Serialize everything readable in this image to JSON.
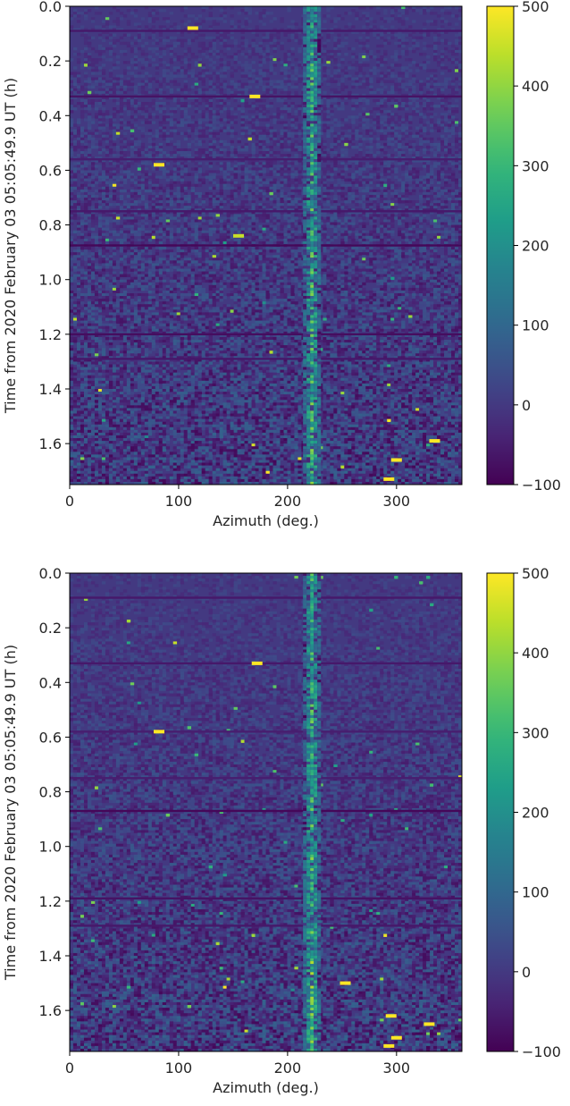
{
  "chart_data": [
    {
      "type": "heatmap",
      "title": "",
      "xlabel": "Azimuth (deg.)",
      "ylabel": "Time from 2020 February 03 05:05:49.9 UT (h)",
      "xlim": [
        0,
        360
      ],
      "ylim": [
        1.75,
        0.0
      ],
      "xticks": [
        0,
        100,
        200,
        300
      ],
      "yticks": [
        0.0,
        0.2,
        0.4,
        0.6,
        0.8,
        1.0,
        1.2,
        1.4,
        1.6
      ],
      "xtick_labels": [
        "0",
        "100",
        "200",
        "300"
      ],
      "ytick_labels": [
        "0.0",
        "0.2",
        "0.4",
        "0.6",
        "0.8",
        "1.0",
        "1.2",
        "1.4",
        "1.6"
      ],
      "colormap": "viridis",
      "colorbar": {
        "vmin": -100,
        "vmax": 500,
        "ticks": [
          -100,
          0,
          100,
          200,
          300,
          400,
          500
        ],
        "tick_labels": [
          "−100",
          "0",
          "100",
          "200",
          "300",
          "400",
          "500"
        ]
      },
      "background_value": 0,
      "ridge": [
        {
          "time": 0.0,
          "azimuth": 222,
          "value": 260
        },
        {
          "time": 0.9,
          "azimuth": 222,
          "value": 280
        },
        {
          "time": 1.75,
          "azimuth": 222,
          "value": 300
        }
      ],
      "horizontal_stripes": [
        {
          "time": 0.09,
          "value": -60
        },
        {
          "time": 0.33,
          "value": -70
        },
        {
          "time": 0.56,
          "value": -50
        },
        {
          "time": 0.75,
          "value": -60
        },
        {
          "time": 0.875,
          "value": -90
        },
        {
          "time": 1.2,
          "value": -80
        },
        {
          "time": 1.29,
          "value": -60
        }
      ],
      "hot_spots": [
        {
          "azimuth": 113,
          "time": 0.08,
          "value": 500
        },
        {
          "azimuth": 170,
          "time": 0.33,
          "value": 500
        },
        {
          "azimuth": 82,
          "time": 0.58,
          "value": 500
        },
        {
          "azimuth": 155,
          "time": 0.84,
          "value": 450
        },
        {
          "azimuth": 300,
          "time": 1.66,
          "value": 500
        },
        {
          "azimuth": 293,
          "time": 1.73,
          "value": 500
        },
        {
          "azimuth": 335,
          "time": 1.59,
          "value": 500
        }
      ]
    },
    {
      "type": "heatmap",
      "title": "",
      "xlabel": "Azimuth (deg.)",
      "ylabel": "Time from 2020 February 03 05:05:49.9 UT (h)",
      "xlim": [
        0,
        360
      ],
      "ylim": [
        1.75,
        0.0
      ],
      "xticks": [
        0,
        100,
        200,
        300
      ],
      "yticks": [
        0.0,
        0.2,
        0.4,
        0.6,
        0.8,
        1.0,
        1.2,
        1.4,
        1.6
      ],
      "xtick_labels": [
        "0",
        "100",
        "200",
        "300"
      ],
      "ytick_labels": [
        "0.0",
        "0.2",
        "0.4",
        "0.6",
        "0.8",
        "1.0",
        "1.2",
        "1.4",
        "1.6"
      ],
      "colormap": "viridis",
      "colorbar": {
        "vmin": -100,
        "vmax": 500,
        "ticks": [
          -100,
          0,
          100,
          200,
          300,
          400,
          500
        ],
        "tick_labels": [
          "−100",
          "0",
          "100",
          "200",
          "300",
          "400",
          "500"
        ]
      },
      "background_value": 0,
      "ridge": [
        {
          "time": 0.0,
          "azimuth": 222,
          "value": 260
        },
        {
          "time": 0.9,
          "azimuth": 222,
          "value": 280
        },
        {
          "time": 1.75,
          "azimuth": 222,
          "value": 320
        }
      ],
      "horizontal_stripes": [
        {
          "time": 0.09,
          "value": -60
        },
        {
          "time": 0.33,
          "value": -60
        },
        {
          "time": 0.58,
          "value": -50
        },
        {
          "time": 0.75,
          "value": -50
        },
        {
          "time": 0.87,
          "value": -90
        },
        {
          "time": 1.19,
          "value": -70
        },
        {
          "time": 1.29,
          "value": -60
        }
      ],
      "hot_spots": [
        {
          "azimuth": 172,
          "time": 0.33,
          "value": 500
        },
        {
          "azimuth": 82,
          "time": 0.58,
          "value": 500
        },
        {
          "azimuth": 253,
          "time": 1.5,
          "value": 500
        },
        {
          "azimuth": 295,
          "time": 1.62,
          "value": 500
        },
        {
          "azimuth": 300,
          "time": 1.7,
          "value": 500
        },
        {
          "azimuth": 293,
          "time": 1.73,
          "value": 500
        },
        {
          "azimuth": 330,
          "time": 1.65,
          "value": 500
        }
      ]
    }
  ]
}
